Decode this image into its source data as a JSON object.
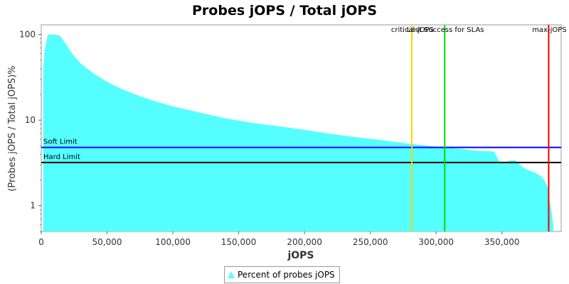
{
  "chart_data": {
    "type": "area",
    "title": "Probes jOPS / Total jOPS",
    "xlabel": "jOPS",
    "ylabel": "(Probes jOPS / Total jOPS)%",
    "y_scale": "log",
    "xlim": [
      0,
      395000
    ],
    "ylim": [
      0.5,
      130
    ],
    "x_ticks": [
      0,
      50000,
      100000,
      150000,
      200000,
      250000,
      300000,
      350000
    ],
    "x_tick_labels": [
      "0",
      "50,000",
      "100,000",
      "150,000",
      "200,000",
      "250,000",
      "300,000",
      "350,000"
    ],
    "y_ticks": [
      1,
      10,
      100
    ],
    "y_tick_labels": [
      "1",
      "10",
      "100"
    ],
    "series": [
      {
        "name": "Percent of probes jOPS",
        "color": "#55ffff",
        "x": [
          1500,
          2500,
          5000,
          10000,
          14000,
          17000,
          20000,
          25000,
          30000,
          40000,
          50000,
          60000,
          75000,
          90000,
          100000,
          120000,
          140000,
          160000,
          180000,
          200000,
          220000,
          240000,
          260000,
          280000,
          300000,
          320000,
          330000,
          344000,
          348000,
          352000,
          355000,
          360000,
          363000,
          366000,
          370000,
          375000,
          380000,
          383000,
          385000,
          386000,
          388000,
          389000
        ],
        "values": [
          40,
          65,
          100,
          100,
          98,
          85,
          72,
          56,
          46,
          35,
          28,
          23.5,
          19,
          16,
          14.5,
          12.3,
          10.5,
          9.3,
          8.5,
          7.7,
          6.9,
          6.3,
          5.8,
          5.3,
          4.9,
          4.6,
          4.4,
          4.3,
          3.3,
          3.2,
          3.35,
          3.4,
          3.1,
          2.8,
          2.6,
          2.45,
          2.2,
          1.9,
          1.6,
          1.2,
          0.8,
          0.6
        ]
      }
    ],
    "horizontal_lines": [
      {
        "label": "Soft Limit",
        "y": 4.8,
        "color": "#0000ff"
      },
      {
        "label": "Hard Limit",
        "y": 3.2,
        "color": "#000000"
      }
    ],
    "vertical_lines": [
      {
        "label": "critical-jOPS",
        "x": 281500,
        "color": "#ffd400"
      },
      {
        "label": "Last Success for SLAs",
        "x": 306500,
        "color": "#00dd00"
      },
      {
        "label": "max-jOPS",
        "x": 385500,
        "color": "#ee0000"
      }
    ],
    "grid": false,
    "legend_position": "bottom-center"
  }
}
